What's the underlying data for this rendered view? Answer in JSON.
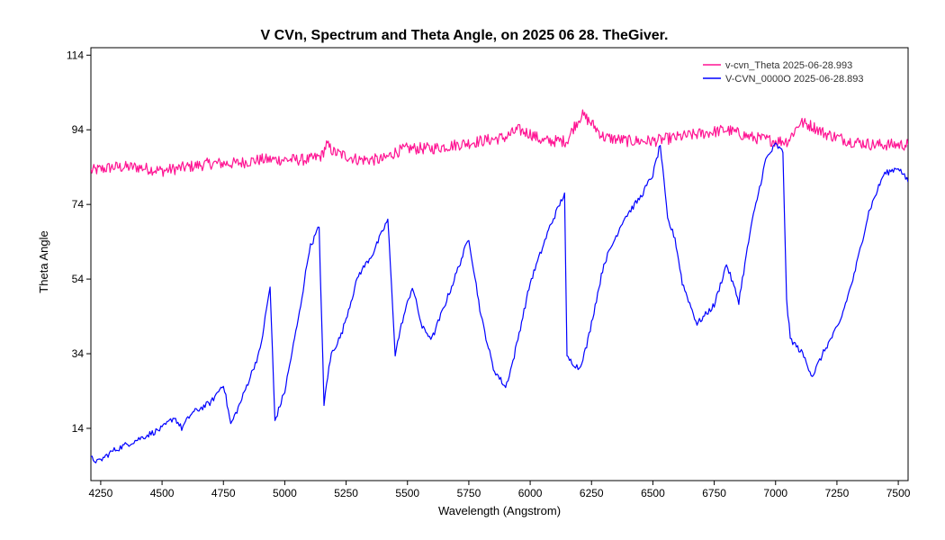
{
  "chart_data": {
    "type": "line",
    "title": "V CVn,  Spectrum and Theta Angle, on 2025 06 28. TheGiver.",
    "xlabel": "Wavelength (Angstrom)",
    "ylabel": "Theta Angle",
    "xlim": [
      4210,
      7540
    ],
    "ylim": [
      0,
      116
    ],
    "xticks": [
      4250,
      4500,
      4750,
      5000,
      5250,
      5500,
      5750,
      6000,
      6250,
      6500,
      6750,
      7000,
      7250,
      7500
    ],
    "yticks": [
      14,
      34,
      54,
      74,
      94,
      114
    ],
    "grid": false,
    "legend_position": "top-right",
    "series": [
      {
        "name": "v-cvn_Theta  2025-06-28.993",
        "color": "#ff1493",
        "x": [
          4210,
          4300,
          4400,
          4500,
          4600,
          4700,
          4800,
          4900,
          5000,
          5100,
          5150,
          5170,
          5200,
          5300,
          5400,
          5450,
          5500,
          5600,
          5700,
          5800,
          5900,
          5950,
          6000,
          6050,
          6100,
          6150,
          6180,
          6210,
          6230,
          6260,
          6300,
          6400,
          6500,
          6600,
          6700,
          6800,
          6900,
          7000,
          7050,
          7080,
          7100,
          7150,
          7200,
          7300,
          7400,
          7540
        ],
        "y": [
          83,
          84,
          84,
          83,
          84,
          85,
          85,
          86,
          86,
          86,
          87,
          90,
          88,
          86,
          86,
          88,
          89,
          89,
          90,
          91,
          92,
          94,
          93,
          91,
          91,
          91,
          95,
          98,
          97,
          95,
          92,
          91,
          91,
          92,
          93,
          94,
          92,
          91,
          91,
          94,
          96,
          95,
          93,
          91,
          90,
          90
        ]
      },
      {
        "name": "V-CVN_0000O  2025-06-28.893",
        "color": "#0000ff",
        "x": [
          4210,
          4240,
          4300,
          4400,
          4500,
          4550,
          4580,
          4620,
          4700,
          4750,
          4780,
          4820,
          4900,
          4940,
          4960,
          5000,
          5060,
          5100,
          5140,
          5160,
          5170,
          5190,
          5230,
          5300,
          5360,
          5420,
          5440,
          5450,
          5480,
          5520,
          5560,
          5600,
          5680,
          5750,
          5800,
          5850,
          5900,
          5930,
          6000,
          6080,
          6140,
          6150,
          6200,
          6230,
          6300,
          6380,
          6450,
          6500,
          6530,
          6560,
          6590,
          6620,
          6680,
          6750,
          6800,
          6850,
          6900,
          6960,
          7000,
          7030,
          7045,
          7060,
          7110,
          7150,
          7200,
          7260,
          7320,
          7380,
          7440,
          7500,
          7540
        ],
        "y": [
          6,
          5,
          8,
          11,
          14,
          17,
          14,
          18,
          21,
          26,
          15,
          21,
          35,
          52,
          16,
          24,
          45,
          62,
          68,
          20,
          26,
          34,
          39,
          55,
          61,
          70,
          46,
          34,
          43,
          52,
          41,
          38,
          52,
          65,
          44,
          30,
          25,
          32,
          53,
          68,
          77,
          33,
          30,
          36,
          58,
          70,
          76,
          82,
          90,
          70,
          65,
          53,
          42,
          47,
          58,
          48,
          68,
          86,
          90,
          88,
          48,
          38,
          34,
          28,
          35,
          42,
          55,
          72,
          82,
          84,
          80
        ]
      }
    ]
  }
}
